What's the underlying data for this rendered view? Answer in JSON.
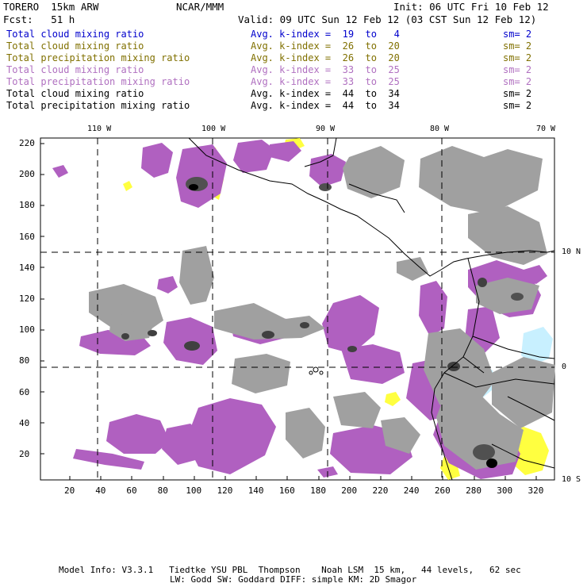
{
  "header": {
    "model": "TORERO  15km ARW",
    "org": "NCAR/MMM",
    "init": "Init: 06 UTC Fri 10 Feb 12",
    "fcst": "Fcst:   51 h",
    "valid": "Valid: 09 UTC Sun 12 Feb 12 (03 CST Sun 12 Feb 12)"
  },
  "legend": [
    {
      "field": "Total cloud mixing ratio",
      "kindex": "Avg. k-index =  19  to   4",
      "sm": "sm= 2",
      "color": "#0000cc"
    },
    {
      "field": "Total cloud mixing ratio",
      "kindex": "Avg. k-index =  26  to  20",
      "sm": "sm= 2",
      "color": "#807000"
    },
    {
      "field": "Total precipitation mixing ratio",
      "kindex": "Avg. k-index =  26  to  20",
      "sm": "sm= 2",
      "color": "#807000"
    },
    {
      "field": "Total cloud mixing ratio",
      "kindex": "Avg. k-index =  33  to  25",
      "sm": "sm= 2",
      "color": "#b070c0"
    },
    {
      "field": "Total precipitation mixing ratio",
      "kindex": "Avg. k-index =  33  to  25",
      "sm": "sm= 2",
      "color": "#b070c0"
    },
    {
      "field": "Total cloud mixing ratio",
      "kindex": "Avg. k-index =  44  to  34",
      "sm": "sm= 2",
      "color": "#000000"
    },
    {
      "field": "Total precipitation mixing ratio",
      "kindex": "Avg. k-index =  44  to  34",
      "sm": "sm= 2",
      "color": "#000000"
    }
  ],
  "map": {
    "lon_labels": [
      "110 W",
      "100 W",
      "90 W",
      "80 W",
      "70 W"
    ],
    "lat_labels": [
      "10 N",
      "0",
      "10 S"
    ],
    "y_ticks": [
      "220",
      "200",
      "180",
      "160",
      "140",
      "120",
      "100",
      "80",
      "60",
      "40",
      "20"
    ],
    "x_ticks": [
      "20",
      "40",
      "60",
      "80",
      "100",
      "120",
      "140",
      "160",
      "180",
      "200",
      "220",
      "240",
      "260",
      "280",
      "300",
      "320"
    ],
    "colors": {
      "purple": "#b060c0",
      "yellow": "#ffff40",
      "lightblue": "#c8f0ff",
      "gray": "#a0a0a0",
      "darkgray": "#505050",
      "black": "#000000"
    }
  },
  "footer": {
    "line1": "Model Info: V3.3.1   Tiedtke YSU PBL  Thompson    Noah LSM  15 km,   44 levels,   62 sec",
    "line2": "LW: Godd SW: Goddard DIFF: simple KM: 2D Smagor"
  }
}
